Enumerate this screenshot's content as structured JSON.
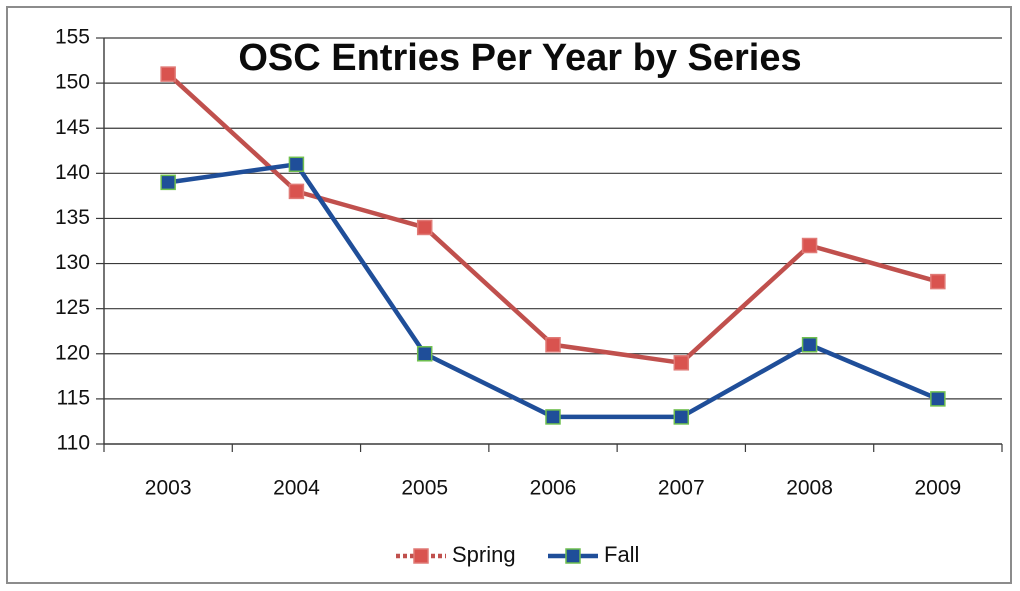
{
  "chart_data": {
    "type": "line",
    "title": "OSC Entries Per Year by Series",
    "xlabel": "",
    "ylabel": "",
    "categories": [
      "2003",
      "2004",
      "2005",
      "2006",
      "2007",
      "2008",
      "2009"
    ],
    "ylim": [
      110,
      155
    ],
    "yticks": [
      110,
      115,
      120,
      125,
      130,
      135,
      140,
      145,
      150,
      155
    ],
    "grid": true,
    "legend_position": "bottom",
    "series": [
      {
        "name": "Spring",
        "values": [
          151,
          138,
          134,
          121,
          119,
          132,
          128
        ],
        "color": "#c0504d",
        "marker_color": "#d9534f"
      },
      {
        "name": "Fall",
        "values": [
          139,
          141,
          120,
          113,
          113,
          121,
          115
        ],
        "color": "#1f4e99",
        "marker_color": "#1f4e99"
      }
    ]
  }
}
